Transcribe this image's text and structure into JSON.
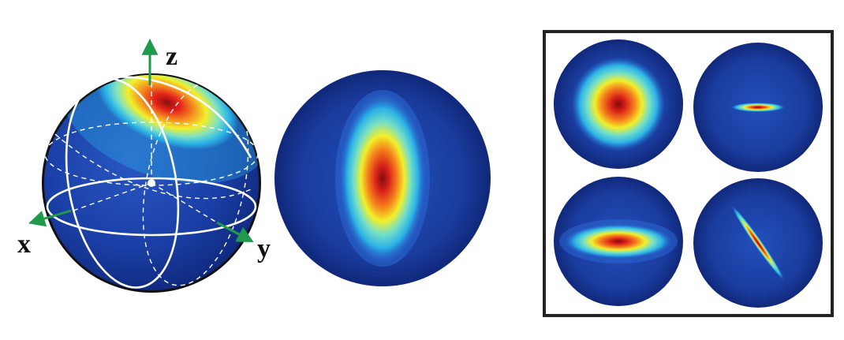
{
  "axes": {
    "z_label": "z",
    "x_label": "x",
    "y_label": "y"
  },
  "colors": {
    "axis_arrow": "#1f9a4a",
    "sphere_rim": "#111111",
    "grid_lines": "#ffffff",
    "panel_frame": "#222222",
    "colormap": [
      "#0b2a86",
      "#1e4fb8",
      "#2bb4e8",
      "#7fe2c2",
      "#f2ef2a",
      "#f3921f",
      "#e5231b",
      "#8a0f10"
    ]
  },
  "panels": {
    "sphere": "gaussian-on-sphere",
    "ellipse": "elongated-vertical",
    "grid": [
      "round",
      "thin-horizontal",
      "wide-horizontal",
      "thin-diagonal"
    ]
  }
}
